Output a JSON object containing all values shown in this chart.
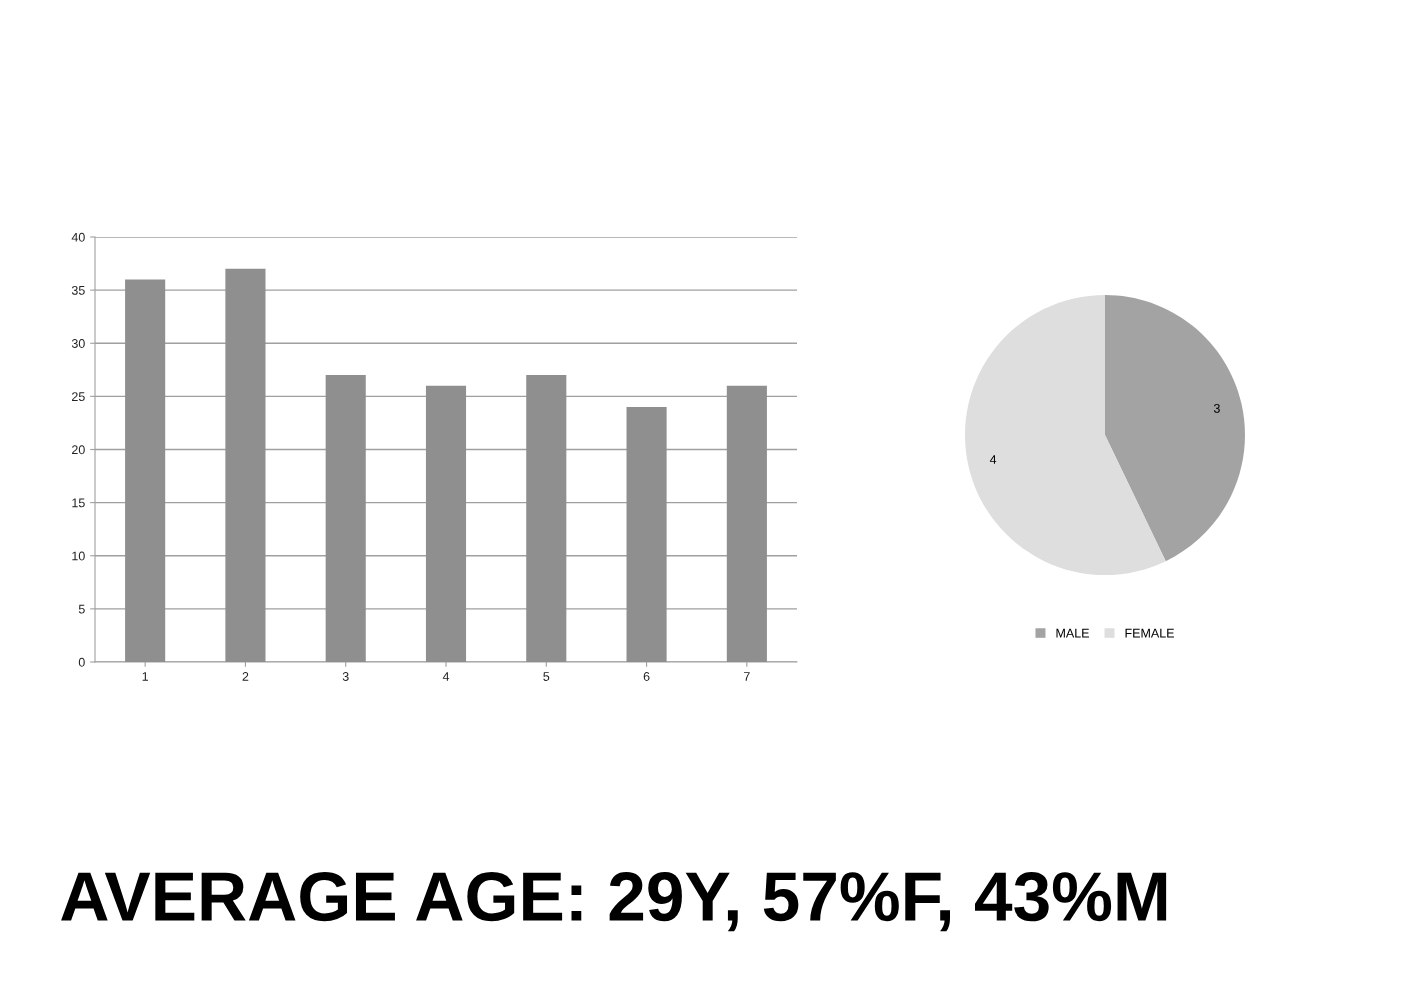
{
  "chart_data": [
    {
      "type": "bar",
      "categories": [
        "1",
        "2",
        "3",
        "4",
        "5",
        "6",
        "7"
      ],
      "values": [
        36,
        37,
        27,
        26,
        27,
        24,
        26
      ],
      "color": "#8f8f8f",
      "ylim": [
        0,
        40
      ],
      "yticks": [
        0,
        5,
        10,
        15,
        20,
        25,
        30,
        35,
        40
      ],
      "grid": "y",
      "annotations": [
        "AVERAGE AGE: 29Y, 57%F, 43%M"
      ]
    },
    {
      "type": "pie",
      "categories": [
        "MALE",
        "FEMALE"
      ],
      "values": [
        3,
        4
      ],
      "colors": [
        "#a3a3a3",
        "#dedede"
      ],
      "data_labels": true,
      "legend": "bottom"
    }
  ]
}
